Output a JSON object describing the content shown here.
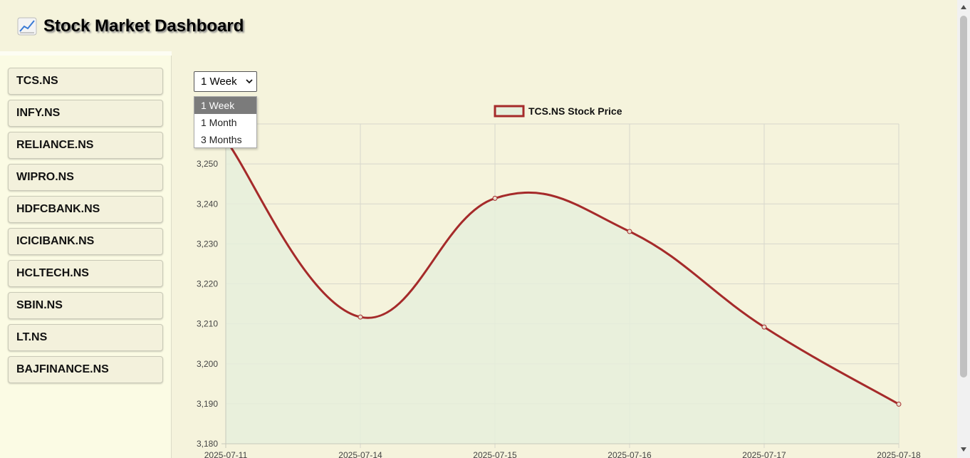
{
  "header": {
    "title": "Stock Market Dashboard",
    "icon": "chart-increasing-icon"
  },
  "sidebar": {
    "stocks": [
      "TCS.NS",
      "INFY.NS",
      "RELIANCE.NS",
      "WIPRO.NS",
      "HDFCBANK.NS",
      "ICICIBANK.NS",
      "HCLTECH.NS",
      "SBIN.NS",
      "LT.NS",
      "BAJFINANCE.NS"
    ]
  },
  "range_selector": {
    "selected": "1 Week",
    "options": [
      "1 Week",
      "1 Month",
      "3 Months"
    ]
  },
  "chart_data": {
    "type": "line",
    "legend": "TCS.NS Stock Price",
    "x": [
      "2025-07-11",
      "2025-07-14",
      "2025-07-15",
      "2025-07-16",
      "2025-07-17",
      "2025-07-18"
    ],
    "values": [
      3256,
      3211.7,
      3241.4,
      3233.1,
      3209.2,
      3189.9
    ],
    "y_ticks": [
      3180,
      3190,
      3200,
      3210,
      3220,
      3230,
      3240,
      3250
    ],
    "y_tick_labels": [
      "3,180",
      "3,190",
      "3,200",
      "3,210",
      "3,220",
      "3,230",
      "3,240",
      "3,250"
    ],
    "ylim": [
      3180,
      3260
    ],
    "grid": true,
    "fill": true,
    "colors": {
      "line": "#a52a2a",
      "fill": "#e6efdc",
      "grid": "#d7d7cc"
    }
  }
}
